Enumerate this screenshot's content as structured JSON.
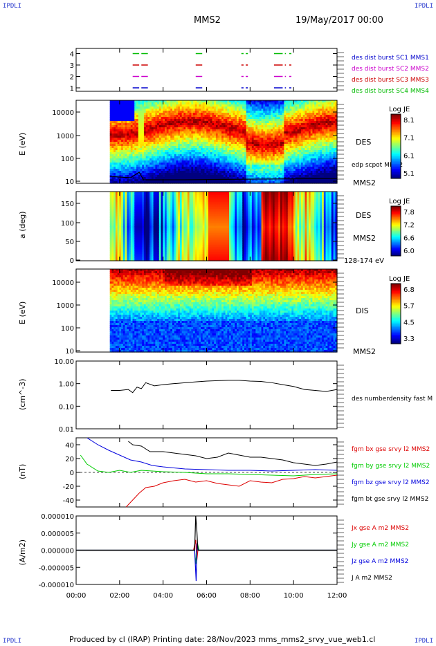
{
  "header": {
    "corner_left_top": "IPDLI",
    "corner_right_top": "IPDLI",
    "spacecraft": "MMS2",
    "date": "19/May/2017 00:00",
    "corner_left_bottom": "IPDLI",
    "corner_right_bottom": "IPDLI"
  },
  "footer": {
    "text": "Produced by cl (IRAP)   Printing date: 28/Nov/2023   mms_mms2_srvy_vue_web1.cl"
  },
  "colors": {
    "mms1": "#0000cc",
    "mms2": "#cc00cc",
    "mms3": "#cc0000",
    "mms4": "#00bb00",
    "bx": "#dd0000",
    "by": "#00cc00",
    "bz": "#0000dd",
    "bt": "#000000"
  },
  "chart_data": [
    {
      "id": "burst",
      "type": "scatter",
      "y_ticks": [
        "1",
        "2",
        "3",
        "4"
      ],
      "series": [
        {
          "name": "des dist burst SC1 MMS1",
          "y": 1,
          "intervals_h": [
            [
              2.6,
              2.9
            ],
            [
              3.0,
              3.3
            ],
            [
              5.5,
              5.8
            ],
            [
              7.6,
              7.7
            ],
            [
              7.8,
              7.9
            ],
            [
              9.1,
              9.5
            ],
            [
              9.6,
              9.65
            ],
            [
              9.8,
              9.9
            ]
          ]
        },
        {
          "name": "des dist burst SC2 MMS2",
          "y": 2,
          "intervals_h": [
            [
              2.6,
              2.9
            ],
            [
              3.0,
              3.3
            ],
            [
              5.5,
              5.8
            ],
            [
              7.6,
              7.7
            ],
            [
              7.8,
              7.9
            ],
            [
              9.1,
              9.5
            ],
            [
              9.6,
              9.65
            ],
            [
              9.8,
              9.9
            ]
          ]
        },
        {
          "name": "des dist burst SC3 MMS3",
          "y": 3,
          "intervals_h": [
            [
              2.6,
              2.9
            ],
            [
              3.0,
              3.3
            ],
            [
              5.5,
              5.8
            ],
            [
              7.6,
              7.7
            ],
            [
              7.8,
              7.9
            ],
            [
              9.1,
              9.5
            ],
            [
              9.6,
              9.65
            ],
            [
              9.8,
              9.9
            ]
          ]
        },
        {
          "name": "des dist burst SC4 MMS4",
          "y": 4,
          "intervals_h": [
            [
              2.6,
              2.9
            ],
            [
              3.0,
              3.3
            ],
            [
              5.5,
              5.8
            ],
            [
              7.6,
              7.7
            ],
            [
              7.8,
              7.9
            ],
            [
              9.1,
              9.5
            ],
            [
              9.6,
              9.65
            ],
            [
              9.8,
              9.9
            ]
          ]
        }
      ]
    },
    {
      "id": "des_energy",
      "type": "heatmap",
      "ylabel": "E (eV)",
      "scale": "log",
      "ylim": [
        10,
        30000
      ],
      "y_ticks": [
        "10",
        "100",
        "1000",
        "10000"
      ],
      "right_label": "DES",
      "right_sub": "MMS2",
      "overlay_label": "edp scpot MMS2",
      "colorbar": {
        "title": "Log JE",
        "ticks": [
          "8.1",
          "7.1",
          "6.1",
          "5.1"
        ]
      }
    },
    {
      "id": "des_pitch",
      "type": "heatmap",
      "ylabel": "a (deg)",
      "ylim": [
        0,
        180
      ],
      "y_ticks": [
        "0",
        "50",
        "100",
        "150"
      ],
      "right_label": "DES",
      "right_sub": "MMS2",
      "energy_range": "128-174 eV",
      "colorbar": {
        "title": "Log JE",
        "ticks": [
          "7.8",
          "7.2",
          "6.6",
          "6.0"
        ]
      }
    },
    {
      "id": "dis_energy",
      "type": "heatmap",
      "ylabel": "E (eV)",
      "scale": "log",
      "ylim": [
        10,
        30000
      ],
      "y_ticks": [
        "10",
        "100",
        "1000",
        "10000"
      ],
      "right_label": "DIS",
      "right_sub": "MMS2",
      "colorbar": {
        "title": "Log JE",
        "ticks": [
          "6.8",
          "5.7",
          "4.5",
          "3.3"
        ]
      }
    },
    {
      "id": "density",
      "type": "line",
      "ylabel": "(cm^-3)",
      "scale": "log",
      "ylim": [
        0.01,
        10
      ],
      "y_ticks": [
        "0.01",
        "0.10",
        "1.00",
        "10.00"
      ],
      "series": [
        {
          "name": "des numberdensity fast M",
          "x": [
            1.6,
            2.0,
            2.4,
            2.6,
            2.8,
            3.0,
            3.2,
            3.6,
            4.0,
            4.5,
            5.0,
            5.5,
            6.0,
            6.5,
            7.0,
            7.5,
            8.0,
            8.5,
            9.0,
            9.5,
            10.0,
            10.5,
            11.0,
            11.5,
            12.0
          ],
          "y": [
            0.5,
            0.5,
            0.55,
            0.4,
            0.7,
            0.6,
            1.1,
            0.8,
            0.9,
            1.0,
            1.1,
            1.2,
            1.3,
            1.35,
            1.4,
            1.4,
            1.3,
            1.25,
            1.1,
            0.9,
            0.75,
            0.55,
            0.5,
            0.45,
            0.55
          ]
        }
      ]
    },
    {
      "id": "bfield",
      "type": "line",
      "ylabel": "(nT)",
      "ylim": [
        -50,
        50
      ],
      "y_ticks": [
        "-40",
        "-20",
        "0",
        "20",
        "40"
      ],
      "series": [
        {
          "name": "fgm bx gse srvy l2 MMS2",
          "x": [
            2.3,
            2.6,
            2.9,
            3.2,
            3.6,
            4.0,
            4.5,
            5.0,
            5.5,
            6.0,
            6.5,
            7.0,
            7.5,
            8.0,
            8.5,
            9.0,
            9.5,
            10.0,
            10.5,
            11.0,
            11.5,
            12.0
          ],
          "y": [
            -50,
            -40,
            -30,
            -22,
            -20,
            -15,
            -12,
            -10,
            -14,
            -12,
            -16,
            -18,
            -20,
            -12,
            -14,
            -15,
            -10,
            -9,
            -6,
            -8,
            -6,
            -4
          ]
        },
        {
          "name": "fgm by gse srvy l2 MMS2",
          "x": [
            0.2,
            0.5,
            1.0,
            1.5,
            2.0,
            2.5,
            3.0,
            3.5,
            4.0,
            5.0,
            6.0,
            7.0,
            8.0,
            9.0,
            10.0,
            11.0,
            12.0
          ],
          "y": [
            25,
            12,
            2,
            0,
            3,
            0,
            3,
            2,
            1,
            0,
            -2,
            -2,
            -3,
            -4,
            -5,
            -3,
            -2
          ]
        },
        {
          "name": "fgm bz gse srvy l2 MMS2",
          "x": [
            0.5,
            1.0,
            1.5,
            2.0,
            2.5,
            3.0,
            3.5,
            4.0,
            5.0,
            6.0,
            7.0,
            8.0,
            9.0,
            10.0,
            11.0,
            12.0
          ],
          "y": [
            50,
            40,
            32,
            25,
            18,
            15,
            10,
            8,
            5,
            4,
            3,
            3,
            2,
            3,
            4,
            3
          ]
        },
        {
          "name": "fgm bt gse srvy l2 MMS2",
          "x": [
            2.4,
            2.6,
            3.0,
            3.4,
            4.0,
            4.5,
            5.0,
            5.5,
            6.0,
            6.5,
            7.0,
            7.5,
            8.0,
            8.5,
            9.0,
            9.5,
            10.0,
            10.5,
            11.0,
            11.5,
            12.0
          ],
          "y": [
            45,
            40,
            38,
            30,
            30,
            28,
            26,
            24,
            20,
            22,
            28,
            25,
            22,
            22,
            20,
            18,
            14,
            12,
            10,
            12,
            15
          ]
        }
      ]
    },
    {
      "id": "current",
      "type": "line",
      "ylabel": "(A/m2)",
      "ylim": [
        -1e-05,
        1e-05
      ],
      "y_ticks": [
        "-0.000010",
        "-0.000005",
        "0.000000",
        "0.000005",
        "0.000010"
      ],
      "xlim_h": [
        0,
        12
      ],
      "x_ticks": [
        "00:00",
        "02:00",
        "04:00",
        "06:00",
        "08:00",
        "10:00",
        "12:00"
      ],
      "series": [
        {
          "name": "Jx gse A m2 MMS2",
          "x": [
            0,
            5.4,
            5.5,
            5.55,
            5.6,
            12
          ],
          "y": [
            0,
            0,
            3e-06,
            -3e-06,
            0,
            0
          ]
        },
        {
          "name": "Jy gse A m2 MMS2",
          "x": [
            0,
            5.45,
            5.5,
            5.58,
            5.65,
            12
          ],
          "y": [
            0,
            0,
            -4e-06,
            2e-06,
            0,
            0
          ]
        },
        {
          "name": "Jz gse A m2 MMS2",
          "x": [
            0,
            5.45,
            5.52,
            5.56,
            5.62,
            12
          ],
          "y": [
            0,
            0,
            -9e-06,
            2e-06,
            0,
            0
          ]
        },
        {
          "name": "J A m2 MMS2",
          "x": [
            0,
            5.45,
            5.5,
            5.55,
            5.6,
            12
          ],
          "y": [
            0,
            0,
            1e-05,
            6e-06,
            0,
            0
          ]
        }
      ]
    }
  ]
}
